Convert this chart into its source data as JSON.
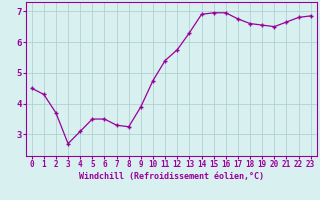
{
  "x": [
    0,
    1,
    2,
    3,
    4,
    5,
    6,
    7,
    8,
    9,
    10,
    11,
    12,
    13,
    14,
    15,
    16,
    17,
    18,
    19,
    20,
    21,
    22,
    23
  ],
  "y": [
    4.5,
    4.3,
    3.7,
    2.7,
    3.1,
    3.5,
    3.5,
    3.3,
    3.25,
    3.9,
    4.75,
    5.4,
    5.75,
    6.3,
    6.9,
    6.95,
    6.95,
    6.75,
    6.6,
    6.55,
    6.5,
    6.65,
    6.8,
    6.85
  ],
  "line_color": "#990099",
  "marker": "+",
  "marker_size": 3,
  "bg_color": "#d8f0f0",
  "grid_color": "#aacccc",
  "xlabel": "Windchill (Refroidissement éolien,°C)",
  "xlabel_color": "#990099",
  "tick_color": "#990099",
  "xlim": [
    -0.5,
    23.5
  ],
  "ylim": [
    2.3,
    7.3
  ],
  "yticks": [
    3,
    4,
    5,
    6,
    7
  ],
  "xticks": [
    0,
    1,
    2,
    3,
    4,
    5,
    6,
    7,
    8,
    9,
    10,
    11,
    12,
    13,
    14,
    15,
    16,
    17,
    18,
    19,
    20,
    21,
    22,
    23
  ],
  "spine_color": "#990099",
  "tick_fontsize": 5.5,
  "xlabel_fontsize": 6.0
}
